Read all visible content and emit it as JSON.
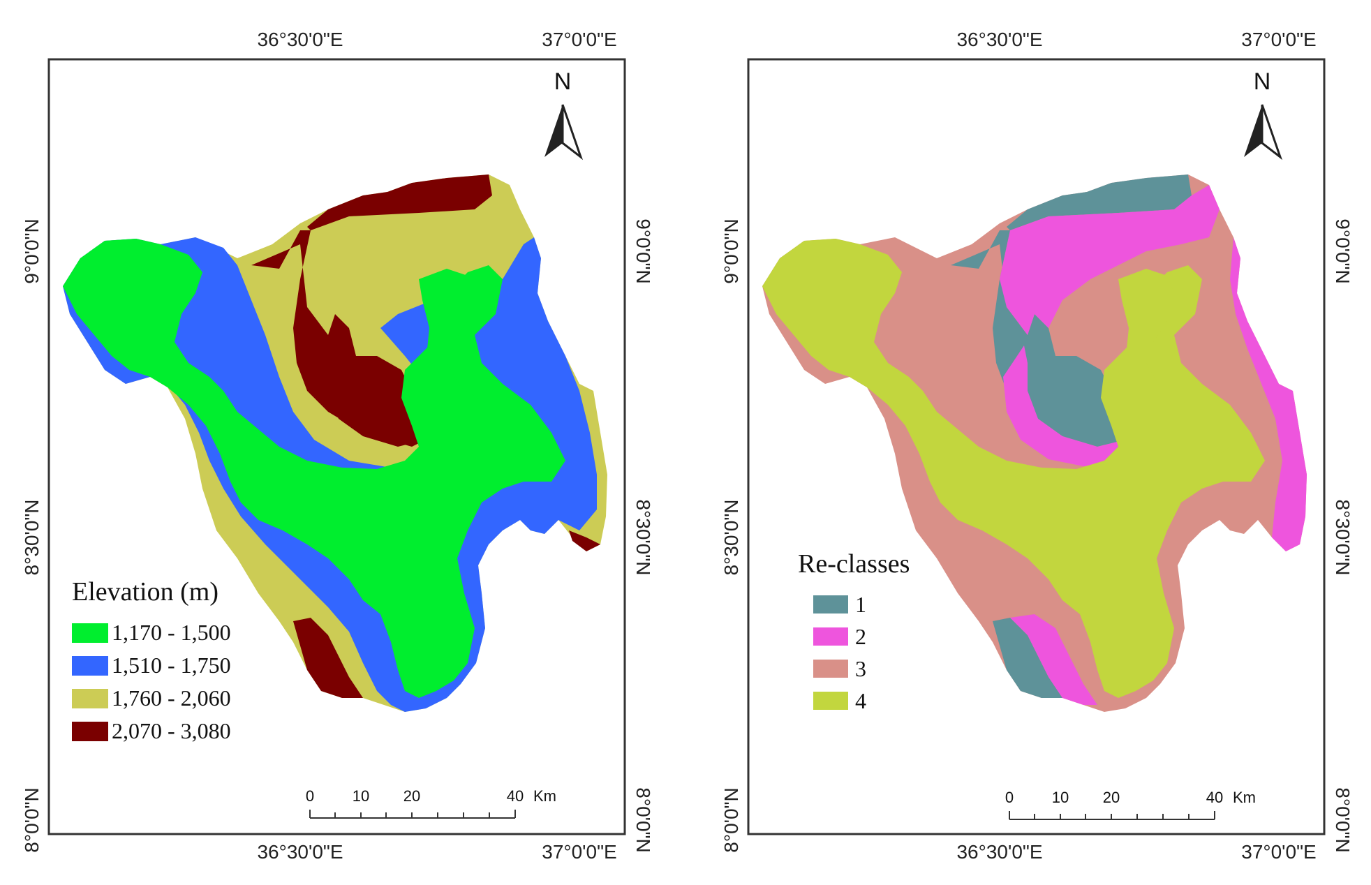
{
  "left_map": {
    "top_lon_labels": [
      "36°30'0\"E",
      "37°0'0\"E"
    ],
    "bottom_lon_labels": [
      "36°30'0\"E",
      "37°0'0\"E"
    ],
    "left_lat_labels": [
      "9°0'0\"N",
      "8°30'0\"N",
      "8°0'0\"N"
    ],
    "right_lat_labels": [
      "9°0'0\"N",
      "8°30'0\"N",
      "8°0'0\"N"
    ],
    "north_label": "N",
    "legend": {
      "title": "Elevation (m)",
      "items": [
        {
          "label": "1,170 - 1,500",
          "color": "#00ee2e"
        },
        {
          "label": "1,510 - 1,750",
          "color": "#3366ff"
        },
        {
          "label": "1,760 - 2,060",
          "color": "#cccc55"
        },
        {
          "label": "2,070 - 3,080",
          "color": "#7a0000"
        }
      ]
    },
    "scale_bar": {
      "ticks": [
        "0",
        "10",
        "20",
        "40"
      ],
      "unit": "Km"
    }
  },
  "right_map": {
    "top_lon_labels": [
      "36°30'0\"E",
      "37°0'0\"E"
    ],
    "bottom_lon_labels": [
      "36°30'0\"E",
      "37°0'0\"E"
    ],
    "left_lat_labels": [
      "9°0'0\"N",
      "8°30'0\"N",
      "8°0'0\"N"
    ],
    "right_lat_labels": [
      "9°0'0\"N",
      "8°30'0\"N",
      "8°0'0\"N"
    ],
    "north_label": "N",
    "legend": {
      "title": "Re-classes",
      "items": [
        {
          "label": "1",
          "color": "#5e9299"
        },
        {
          "label": "2",
          "color": "#ee55dd"
        },
        {
          "label": "3",
          "color": "#d99088"
        },
        {
          "label": "4",
          "color": "#c2d63e"
        }
      ]
    },
    "scale_bar": {
      "ticks": [
        "0",
        "10",
        "20",
        "40"
      ],
      "unit": "Km"
    }
  }
}
